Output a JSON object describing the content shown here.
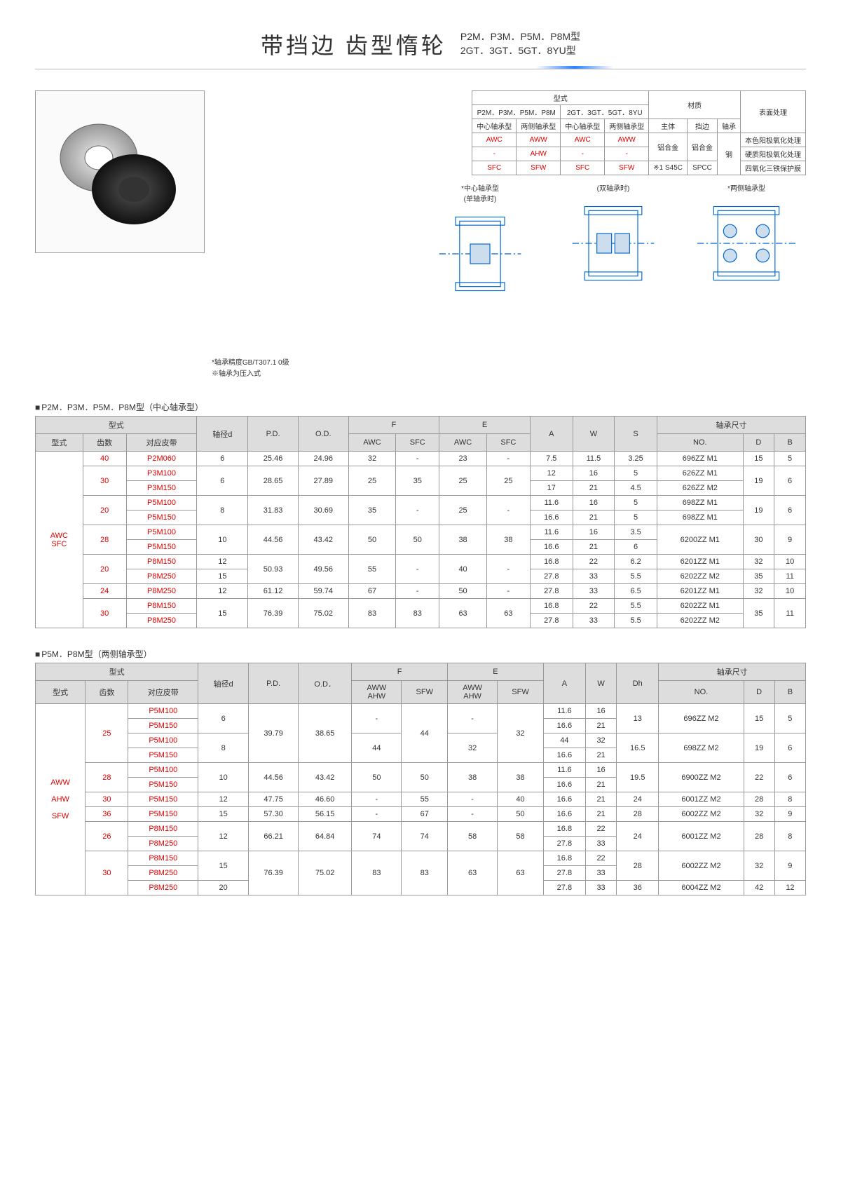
{
  "header": {
    "title": "带挡边 齿型惰轮",
    "sub1": "P2M．P3M．P5M．P8M型",
    "sub2": "2GT．3GT．5GT．8YU型"
  },
  "small_table": {
    "h1": "型式",
    "h2": "材质",
    "h3": "表面处理",
    "r1c1": "P2M．P3M．P5M．P8M",
    "r1c2": "2GT．3GT．5GT．8YU",
    "r2c1": "中心轴承型",
    "r2c2": "两侧轴承型",
    "r2c3": "中心轴承型",
    "r2c4": "两侧轴承型",
    "r2c5": "主体",
    "r2c6": "挡边",
    "r2c7": "轴承",
    "awc": "AWC",
    "aww": "AWW",
    "ahw": "AHW",
    "sfc": "SFC",
    "sfw": "SFW",
    "m1": "铝合金",
    "m2": "铝合金",
    "m3": "钢",
    "m4": "※1 S45C",
    "m5": "SPCC",
    "t1": "本色阳极氧化处理",
    "t2": "硬质阳极氧化处理",
    "t3": "四氧化三铁保护膜"
  },
  "diag_labels": {
    "d1": "*中心轴承型",
    "d1b": "(单轴承时)",
    "d2": "(双轴承时)",
    "d3": "*两侧轴承型"
  },
  "notes": {
    "n1": "*轴承精度GB/T307.1 0级",
    "n2": "※轴承为压入式"
  },
  "section1_title": "P2M．P3M．P5M．P8M型（中心轴承型）",
  "section2_title": "P5M．P8M型（两侧轴承型）",
  "t1_headers": {
    "h1": "型式",
    "h2": "轴径d",
    "h3": "P.D.",
    "h4": "O.D.",
    "h5": "F",
    "h6": "E",
    "h7": "A",
    "h8": "W",
    "h9": "S",
    "h10": "轴承尺寸",
    "s1": "型式",
    "s2": "齿数",
    "s3": "对应皮带",
    "s4": "AWC",
    "s5": "SFC",
    "s6": "AWC",
    "s7": "SFC",
    "s8": "NO.",
    "s9": "D",
    "s10": "B"
  },
  "t1_rows": [
    {
      "type": "AWC\nSFC",
      "teeth": "40",
      "belt": "P2M060",
      "d": "6",
      "pd": "25.46",
      "od": "24.96",
      "f_awc": "32",
      "f_sfc": "-",
      "e_awc": "23",
      "e_sfc": "-",
      "a": "7.5",
      "w": "11.5",
      "s": "3.25",
      "no": "696ZZ M1",
      "D": "15",
      "B": "5"
    },
    {
      "teeth": "30",
      "belt": "P3M100",
      "d": "6",
      "pd": "28.65",
      "od": "27.89",
      "f_awc": "25",
      "f_sfc": "35",
      "e_awc": "25",
      "e_sfc": "25",
      "a": "12",
      "w": "16",
      "s": "5",
      "no": "626ZZ M1",
      "D": "19",
      "B": "6"
    },
    {
      "belt": "P3M150",
      "a": "17",
      "w": "21",
      "s": "4.5",
      "no": "626ZZ M2"
    },
    {
      "teeth": "20",
      "belt": "P5M100",
      "d": "8",
      "pd": "31.83",
      "od": "30.69",
      "f_awc": "35",
      "f_sfc": "-",
      "e_awc": "25",
      "e_sfc": "-",
      "a": "11.6",
      "w": "16",
      "s": "5",
      "no": "698ZZ M1",
      "D": "19",
      "B": "6"
    },
    {
      "belt": "P5M150",
      "a": "16.6",
      "w": "21",
      "s": "5",
      "no": "698ZZ M1"
    },
    {
      "teeth": "28",
      "belt": "P5M100",
      "d": "10",
      "pd": "44.56",
      "od": "43.42",
      "f_awc": "50",
      "f_sfc": "50",
      "e_awc": "38",
      "e_sfc": "38",
      "a": "11.6",
      "w": "16",
      "s": "3.5",
      "no": "6200ZZ M1",
      "D": "30",
      "B": "9"
    },
    {
      "belt": "P5M150",
      "a": "16.6",
      "w": "21",
      "s": "6"
    },
    {
      "teeth": "20",
      "belt": "P8M150",
      "d": "12",
      "pd": "50.93",
      "od": "49.56",
      "f_awc": "55",
      "f_sfc": "-",
      "e_awc": "40",
      "e_sfc": "-",
      "a": "16.8",
      "w": "22",
      "s": "6.2",
      "no": "6201ZZ M1",
      "D": "32",
      "B": "10"
    },
    {
      "belt": "P8M250",
      "d": "15",
      "a": "27.8",
      "w": "33",
      "s": "5.5",
      "no": "6202ZZ M2",
      "D": "35",
      "B": "11"
    },
    {
      "teeth": "24",
      "belt": "P8M250",
      "d": "12",
      "pd": "61.12",
      "od": "59.74",
      "f_awc": "67",
      "f_sfc": "-",
      "e_awc": "50",
      "e_sfc": "-",
      "a": "27.8",
      "w": "33",
      "s": "6.5",
      "no": "6201ZZ M1",
      "D": "32",
      "B": "10"
    },
    {
      "teeth": "30",
      "belt": "P8M150",
      "d": "15",
      "pd": "76.39",
      "od": "75.02",
      "f_awc": "83",
      "f_sfc": "83",
      "e_awc": "63",
      "e_sfc": "63",
      "a": "16.8",
      "w": "22",
      "s": "5.5",
      "no": "6202ZZ M1",
      "D": "35",
      "B": "11"
    },
    {
      "belt": "P8M250",
      "a": "27.8",
      "w": "33",
      "s": "5.5",
      "no": "6202ZZ M2"
    }
  ],
  "t2_headers": {
    "h1": "型式",
    "h2": "轴径d",
    "h3": "P.D.",
    "h4": "O.D．",
    "h5": "F",
    "h6": "E",
    "h7": "A",
    "h8": "W",
    "h9": "Dh",
    "h10": "轴承尺寸",
    "s1": "型式",
    "s2": "齿数",
    "s3": "对应皮带",
    "s4": "AWW\nAHW",
    "s5": "SFW",
    "s6": "AWW\nAHW",
    "s7": "SFW",
    "s8": "NO.",
    "s9": "D",
    "s10": "B"
  },
  "t2_rows": [
    {
      "type": "AWW\n\nAHW\n\nSFW",
      "teeth": "25",
      "belt": "P5M100",
      "d": "6",
      "pd": "39.79",
      "od": "38.65",
      "f1": "-",
      "f2": "44",
      "e1": "-",
      "e2": "32",
      "a": "11.6",
      "w": "16",
      "dh": "13",
      "no": "696ZZ M2",
      "D": "15",
      "B": "5"
    },
    {
      "belt": "P5M150",
      "a": "16.6",
      "w": "21"
    },
    {
      "belt": "P5M100",
      "d": "8",
      "f1": "44",
      "e1": "32",
      "a": "44",
      "w": "32",
      "dh": "16.5",
      "no": "698ZZ M2",
      "D": "19",
      "B": "6"
    },
    {
      "belt": "P5M150",
      "a": "16.6",
      "w": "21"
    },
    {
      "teeth": "28",
      "belt": "P5M100",
      "d": "10",
      "pd": "44.56",
      "od": "43.42",
      "f1": "50",
      "f2": "50",
      "e1": "38",
      "e2": "38",
      "a": "11.6",
      "w": "16",
      "dh": "19.5",
      "no": "6900ZZ M2",
      "D": "22",
      "B": "6"
    },
    {
      "belt": "P5M150",
      "a": "16.6",
      "w": "21"
    },
    {
      "teeth": "30",
      "belt": "P5M150",
      "d": "12",
      "pd": "47.75",
      "od": "46.60",
      "f1": "-",
      "f2": "55",
      "e1": "-",
      "e2": "40",
      "a": "16.6",
      "w": "21",
      "dh": "24",
      "no": "6001ZZ M2",
      "D": "28",
      "B": "8"
    },
    {
      "teeth": "36",
      "belt": "P5M150",
      "d": "15",
      "pd": "57.30",
      "od": "56.15",
      "f1": "-",
      "f2": "67",
      "e1": "-",
      "e2": "50",
      "a": "16.6",
      "w": "21",
      "dh": "28",
      "no": "6002ZZ M2",
      "D": "32",
      "B": "9"
    },
    {
      "teeth": "26",
      "belt": "P8M150",
      "d": "12",
      "pd": "66.21",
      "od": "64.84",
      "f1": "74",
      "f2": "74",
      "e1": "58",
      "e2": "58",
      "a": "16.8",
      "w": "22",
      "dh": "24",
      "no": "6001ZZ M2",
      "D": "28",
      "B": "8"
    },
    {
      "belt": "P8M250",
      "a": "27.8",
      "w": "33"
    },
    {
      "teeth": "30",
      "belt": "P8M150",
      "d": "15",
      "pd": "76.39",
      "od": "75.02",
      "f1": "83",
      "f2": "83",
      "e1": "63",
      "e2": "63",
      "a": "16.8",
      "w": "22",
      "dh": "28",
      "no": "6002ZZ M2",
      "D": "32",
      "B": "9"
    },
    {
      "belt": "P8M250",
      "a": "27.8",
      "w": "33"
    },
    {
      "belt": "P8M250",
      "d": "20",
      "a": "27.8",
      "w": "33",
      "dh": "36",
      "no": "6004ZZ M2",
      "D": "42",
      "B": "12"
    }
  ]
}
